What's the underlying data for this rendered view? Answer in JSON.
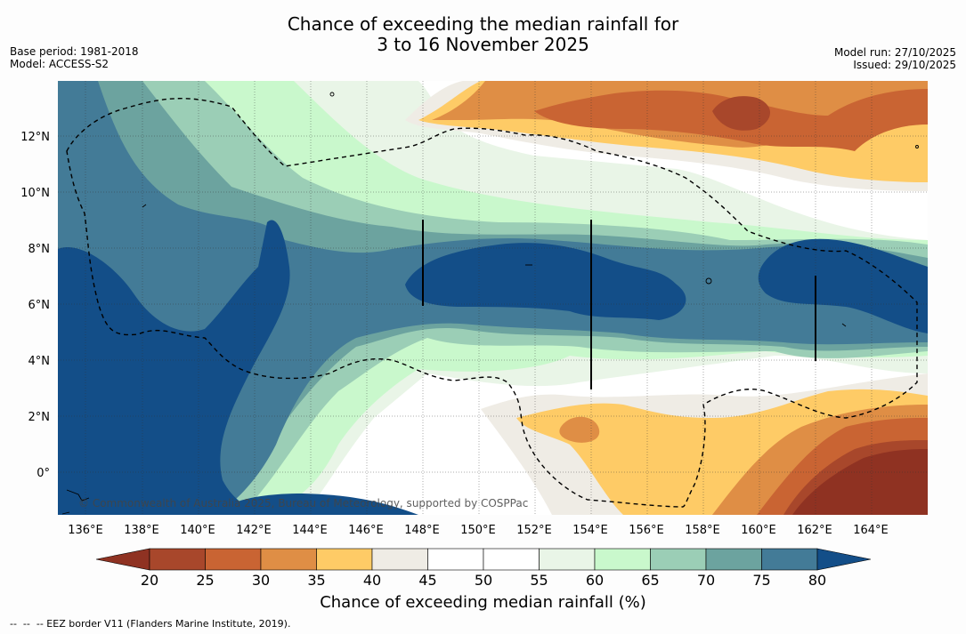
{
  "title": {
    "line1": "Chance of exceeding the median rainfall for",
    "line2": "3 to 16 November 2025"
  },
  "meta_left": {
    "base_period": "Base period: 1981-2018",
    "model": "Model: ACCESS-S2"
  },
  "meta_right": {
    "model_run": "Model run: 27/10/2025",
    "issued": "Issued: 29/10/2025"
  },
  "copyright": "© Commonwealth of Australia 2025, Bureau of Meteorology, supported by COSPPac",
  "footnote": "--  --  -- EEZ border V11 (Flanders Marine Institute, 2019).",
  "map_data": {
    "lon_ticks": [
      "136°E",
      "138°E",
      "140°E",
      "142°E",
      "144°E",
      "146°E",
      "148°E",
      "150°E",
      "152°E",
      "154°E",
      "156°E",
      "158°E",
      "160°E",
      "162°E",
      "164°E"
    ],
    "lat_ticks": [
      "12°N",
      "10°N",
      "8°N",
      "6°N",
      "4°N",
      "2°N",
      "0°"
    ]
  },
  "colorbar": {
    "title": "Chance of exceeding median rainfall (%)",
    "ticks": [
      "20",
      "25",
      "30",
      "35",
      "40",
      "45",
      "50",
      "55",
      "60",
      "65",
      "70",
      "75",
      "80"
    ],
    "colors": {
      "below": "#8f3222",
      "bins": [
        "#a8472b",
        "#c96433",
        "#df8e45",
        "#fecb66",
        "#efece5",
        "#ffffff",
        "#ffffff",
        "#e9f5e7",
        "#c9f8cc",
        "#9bceb6",
        "#6ca39f",
        "#437b97"
      ],
      "above": "#134e88"
    }
  },
  "palette": {
    "dark_brown": "#8f3222",
    "brown": "#a8472b",
    "orange_dark": "#c96433",
    "orange": "#df8e45",
    "yellow": "#fecb66",
    "grey_light": "#efece5",
    "white": "#ffffff",
    "green_pale": "#e9f5e7",
    "green_light": "#c9f8cc",
    "teal_light": "#9bceb6",
    "teal": "#6ca39f",
    "steel": "#437b97",
    "navy": "#134e88"
  }
}
